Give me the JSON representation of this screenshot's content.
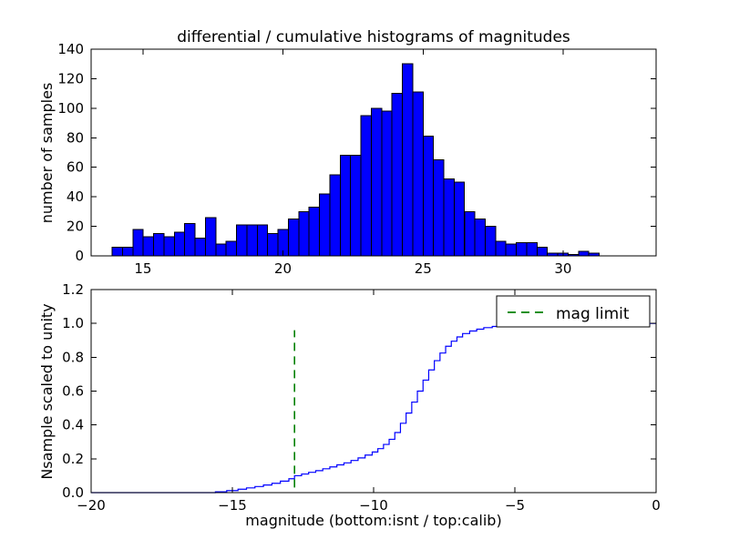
{
  "figure": {
    "background": "#ffffff",
    "title": "differential / cumulative histograms of magnitudes",
    "top_ylabel": "number of samples",
    "bottom_ylabel": "Nsample scaled to unity",
    "xlabel": "magnitude (bottom:isnt / top:calib)"
  },
  "chart_data": [
    {
      "type": "bar",
      "name": "differential histogram of calibrated magnitudes",
      "title": "differential / cumulative histograms of magnitudes",
      "ylabel": "number of samples",
      "xlim": [
        13.15,
        33.32
      ],
      "ylim": [
        0,
        140
      ],
      "xticks": [
        15,
        20,
        25,
        30
      ],
      "xtick_labels": [
        "15",
        "20",
        "25",
        "30"
      ],
      "yticks": [
        0,
        20,
        40,
        60,
        80,
        100,
        120,
        140
      ],
      "ytick_labels": [
        "0",
        "20",
        "40",
        "60",
        "80",
        "100",
        "120",
        "140"
      ],
      "grid": false,
      "bar_color": "#0000ff",
      "bar_edge_color": "#000000",
      "bin_start": 13.9,
      "bin_width": 0.37,
      "counts": [
        6,
        6,
        18,
        13,
        15,
        13,
        16,
        22,
        12,
        26,
        8,
        10,
        21,
        21,
        21,
        15,
        18,
        25,
        30,
        33,
        42,
        55,
        68,
        68,
        95,
        100,
        98,
        110,
        130,
        111,
        81,
        65,
        52,
        50,
        30,
        25,
        20,
        10,
        8,
        9,
        9,
        6,
        2,
        2,
        1,
        3,
        2
      ]
    },
    {
      "type": "line",
      "name": "cumulative histogram of instrumental magnitudes scaled to unity",
      "ylabel": "Nsample scaled to unity",
      "xlabel": "magnitude (bottom:isnt / top:calib)",
      "xlim": [
        -20,
        0
      ],
      "ylim": [
        0,
        1.2
      ],
      "xticks": [
        -20,
        -15,
        -10,
        -5,
        0
      ],
      "xtick_labels": [
        "−20",
        "−15",
        "−10",
        "−5",
        "0"
      ],
      "yticks": [
        0,
        0.2,
        0.4,
        0.6,
        0.8,
        1.0,
        1.2
      ],
      "ytick_labels": [
        "0.0",
        "0.2",
        "0.4",
        "0.6",
        "0.8",
        "1.0",
        "1.2"
      ],
      "grid": false,
      "line_color": "#0000ff",
      "steps": {
        "x_start": -20,
        "y_start": 0,
        "x_end": 0,
        "x": [
          -15.6,
          -15.2,
          -14.8,
          -14.5,
          -14.2,
          -13.9,
          -13.6,
          -13.3,
          -13.0,
          -12.8,
          -12.55,
          -12.3,
          -12.05,
          -11.8,
          -11.55,
          -11.3,
          -11.05,
          -10.8,
          -10.55,
          -10.3,
          -10.05,
          -9.85,
          -9.65,
          -9.45,
          -9.25,
          -9.05,
          -8.85,
          -8.65,
          -8.45,
          -8.25,
          -8.05,
          -7.85,
          -7.65,
          -7.45,
          -7.25,
          -7.05,
          -6.85,
          -6.6,
          -6.35,
          -6.1,
          -5.8,
          -5.5,
          -5.1,
          -4.6,
          -4.0,
          -3.2
        ],
        "y": [
          0.005,
          0.012,
          0.02,
          0.028,
          0.036,
          0.045,
          0.055,
          0.068,
          0.082,
          0.1,
          0.11,
          0.12,
          0.13,
          0.141,
          0.152,
          0.164,
          0.176,
          0.19,
          0.205,
          0.222,
          0.24,
          0.26,
          0.285,
          0.315,
          0.355,
          0.41,
          0.47,
          0.535,
          0.6,
          0.665,
          0.725,
          0.78,
          0.825,
          0.865,
          0.895,
          0.92,
          0.94,
          0.955,
          0.966,
          0.975,
          0.982,
          0.988,
          0.993,
          0.996,
          0.998,
          1.0
        ]
      },
      "vline": {
        "x": -12.8,
        "y0": 0.03,
        "y1": 0.96,
        "color": "#008000",
        "style": "dashed",
        "label": "mag limit"
      },
      "legend": {
        "label": "mag limit",
        "position": "upper right",
        "line_color": "#008000",
        "line_style": "dashed"
      }
    }
  ]
}
